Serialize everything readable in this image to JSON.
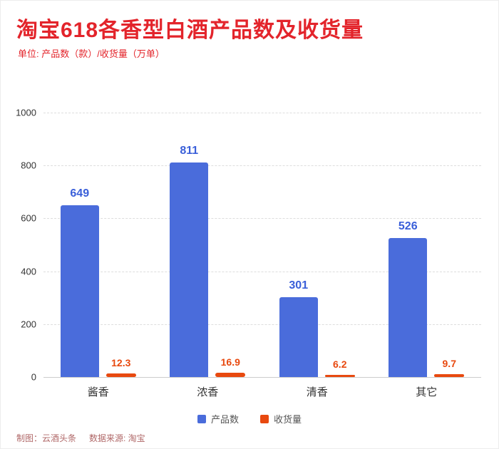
{
  "title": "淘宝618各香型白酒产品数及收货量",
  "subtitle": "单位: 产品数（款）/收货量（万单）",
  "footer": {
    "credit": "制图：云酒头条",
    "source": "数据来源: 淘宝"
  },
  "colors": {
    "title_red": "#e3242b",
    "bar_blue": "#4a6cdb",
    "bar_orange": "#e8490f",
    "grid_gray": "#dddddd"
  },
  "chart_data": {
    "type": "bar",
    "categories": [
      "酱香",
      "浓香",
      "清香",
      "其它"
    ],
    "series": [
      {
        "name": "产品数",
        "color": "#4a6cdb",
        "label_color": "#3a5fd9",
        "values": [
          649,
          811,
          301,
          526
        ]
      },
      {
        "name": "收货量",
        "color": "#e8490f",
        "label_color": "#e8490f",
        "values": [
          12.3,
          16.9,
          6.2,
          9.7
        ]
      }
    ],
    "ylim": [
      0,
      1000
    ],
    "yticks": [
      0,
      200,
      400,
      600,
      800,
      1000
    ],
    "grid": "horizontal-dashed",
    "legend_position": "bottom-center"
  }
}
